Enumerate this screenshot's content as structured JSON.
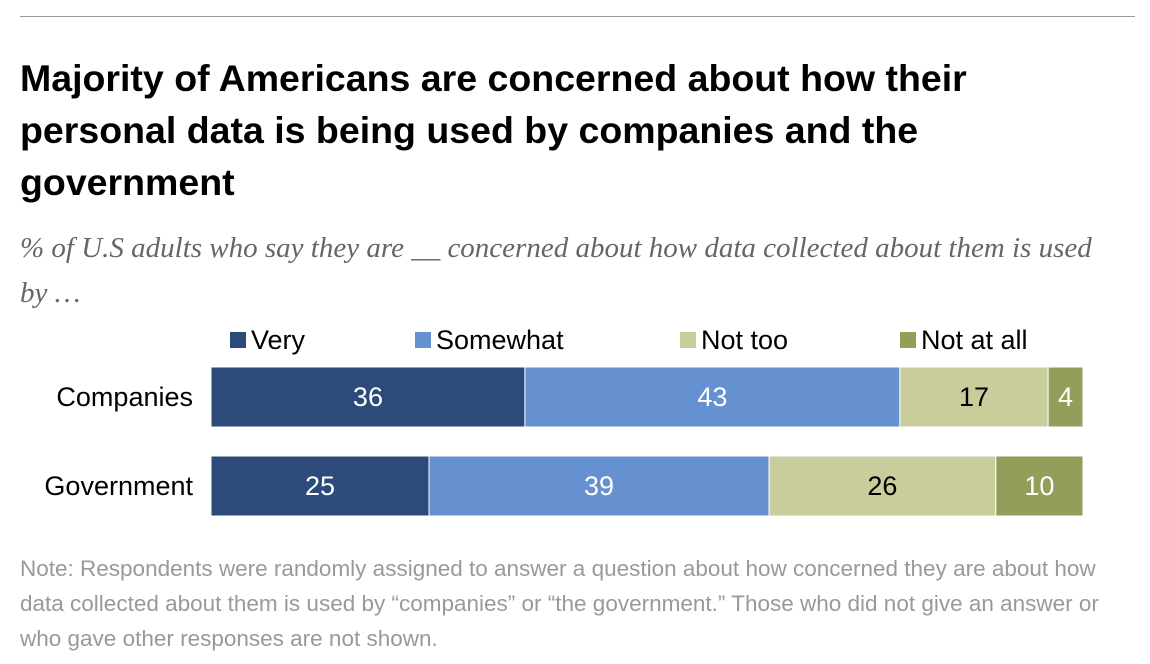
{
  "chart_data": {
    "type": "stacked-bar-horizontal",
    "title": "Majority of Americans are concerned about how their personal data is being used by companies and the government",
    "subtitle": "% of U.S adults who say they are __ concerned about how data collected about them is used by …",
    "categories": [
      "Companies",
      "Government"
    ],
    "series": [
      {
        "name": "Very",
        "color": "#2d4b7a",
        "values": [
          36,
          25
        ]
      },
      {
        "name": "Somewhat",
        "color": "#6691d0",
        "values": [
          43,
          39
        ]
      },
      {
        "name": "Not too",
        "color": "#c8cd9b",
        "values": [
          17,
          26
        ]
      },
      {
        "name": "Not at all",
        "color": "#949e5b",
        "values": [
          4,
          10
        ]
      }
    ],
    "note": "Note: Respondents were randomly assigned to answer a question about how concerned they are about how data collected about them is used by “companies” or “the government.” Those who did not give an answer or who gave other responses are not shown."
  }
}
